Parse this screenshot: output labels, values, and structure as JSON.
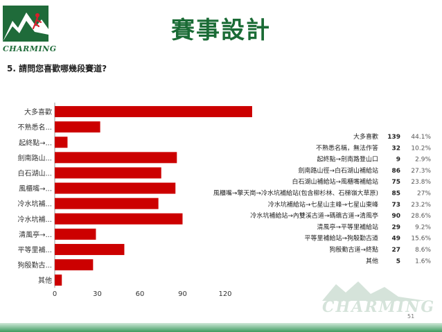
{
  "logo": {
    "text": "CHARMING"
  },
  "title": "賽事設計",
  "question": "5. 請問您喜歡哪幾段賽道?",
  "page_number": "51",
  "watermark_text": "CHARMING",
  "colors": {
    "bar": "#cc0000",
    "title": "#1a6b35",
    "brand": "#1f6b3a"
  },
  "chart_data": {
    "type": "bar",
    "orientation": "horizontal",
    "categories": [
      "大多喜歡",
      "不熟悉名...",
      "起終點→...",
      "劍南路山...",
      "白石湖山...",
      "風櫃嘴→...",
      "冷水坑補...",
      "冷水坑補...",
      "清風亭→...",
      "平等里補...",
      "狗殷勤古...",
      "其他"
    ],
    "values": [
      139,
      32,
      9,
      86,
      75,
      85,
      73,
      90,
      29,
      49,
      27,
      5
    ],
    "xlim": [
      0,
      150
    ],
    "xticks": [
      0,
      30,
      60,
      90,
      120
    ],
    "grid": false,
    "table": {
      "labels": [
        "大多喜歡",
        "不熟悉名稱，無法作答",
        "起終點→劍南路登山口",
        "劍南路山徑→白石湖山補給站",
        "白石湖山補給站→風櫃嘴補給站",
        "風櫃嘴→擎天崗→冷水坑補給站(包含柳杉林、石梯嶺大草原)",
        "冷水坑補給站→七星山主峰→七星山東峰",
        "冷水坑補給站→內雙溪古道→碼礁古道→清風亭",
        "清風亭→平等里補給站",
        "平等里補給站→狗殷勤古道",
        "狗殷勤古道→終點",
        "其他"
      ],
      "counts": [
        "139",
        "32",
        "9",
        "86",
        "75",
        "85",
        "73",
        "90",
        "29",
        "49",
        "27",
        "5"
      ],
      "percents": [
        "44.1%",
        "10.2%",
        "2.9%",
        "27.3%",
        "23.8%",
        "27%",
        "23.2%",
        "28.6%",
        "9.2%",
        "15.6%",
        "8.6%",
        "1.6%"
      ]
    }
  }
}
